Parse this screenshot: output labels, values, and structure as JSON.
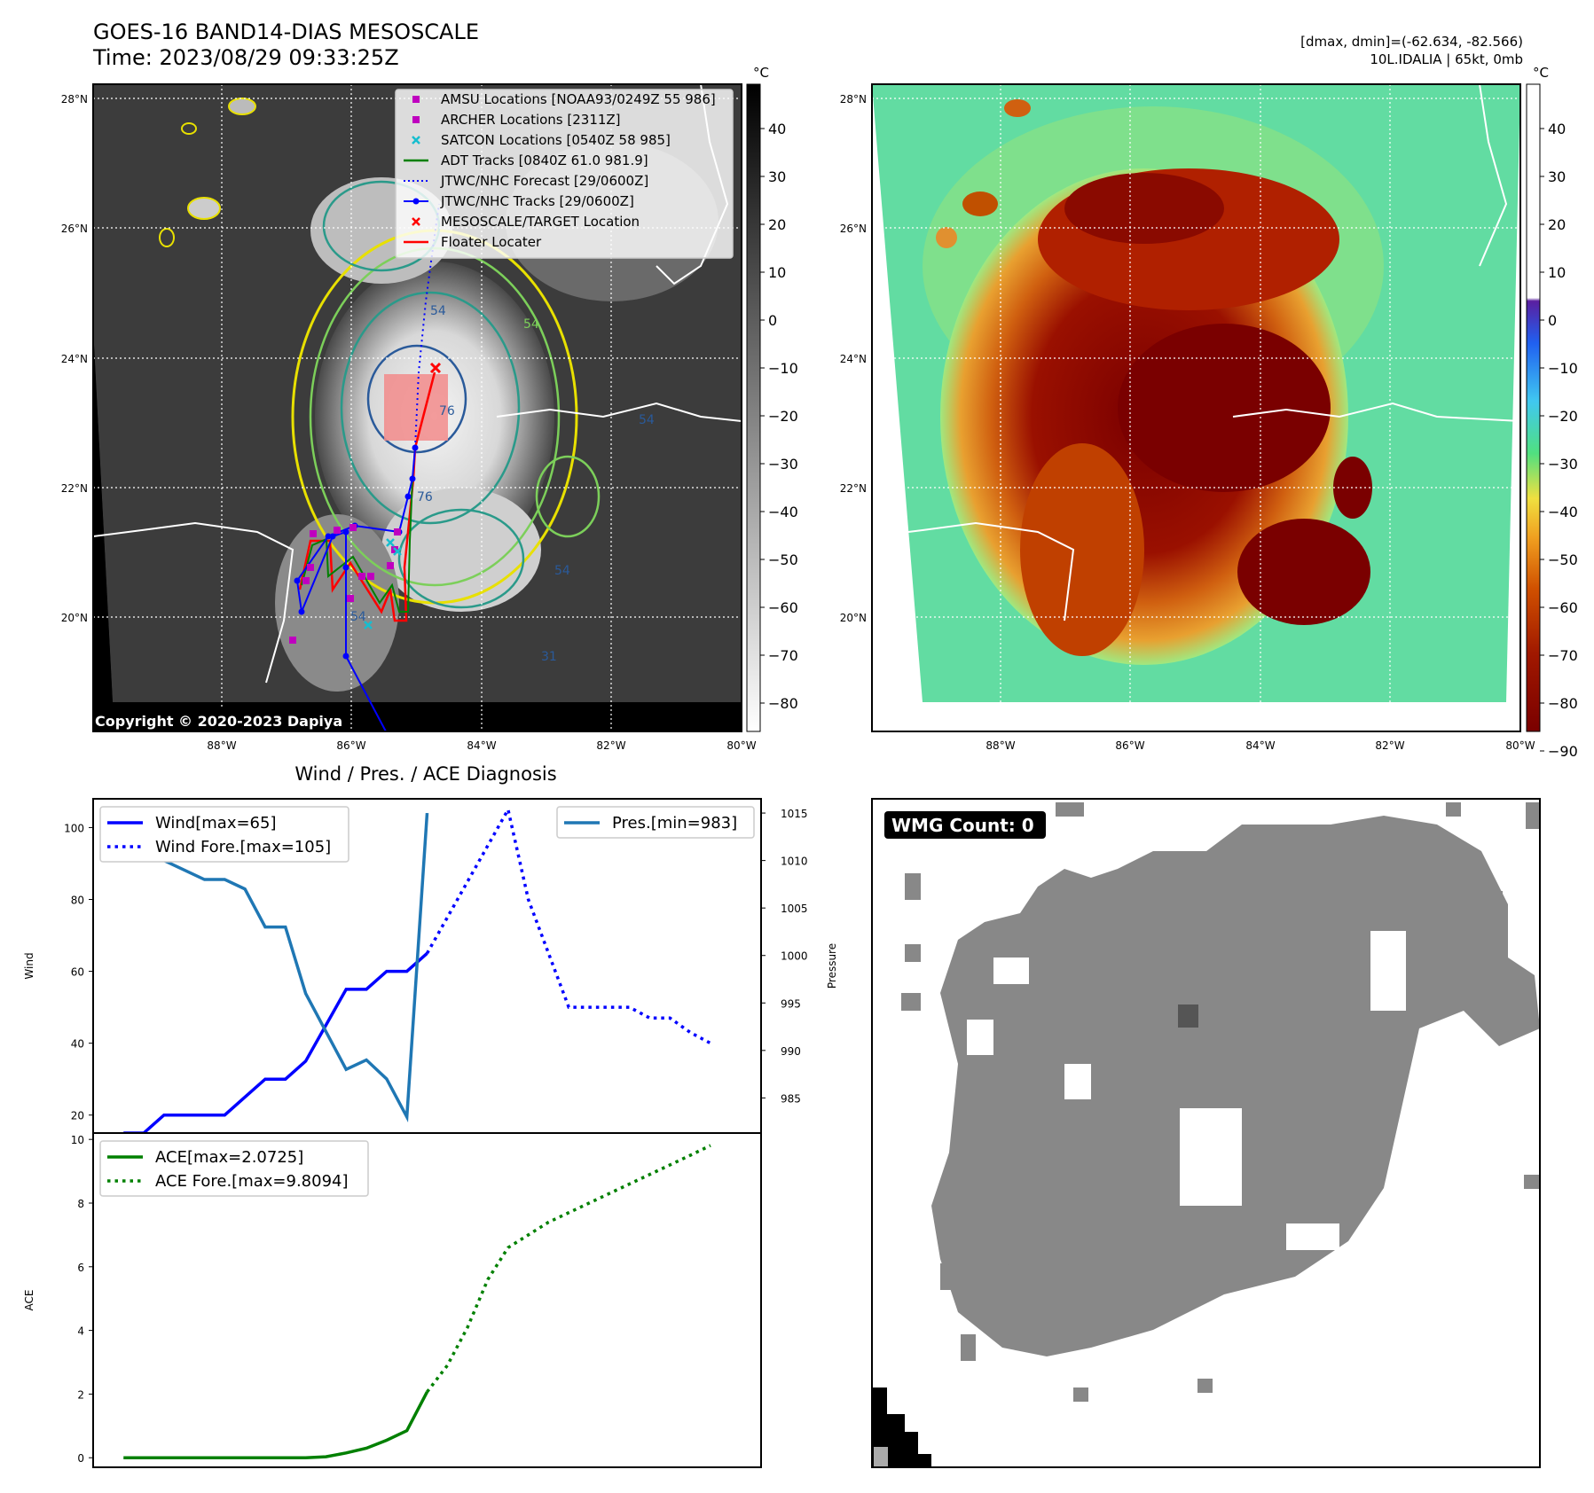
{
  "header": {
    "title_line1": "GOES-16 BAND14-DIAS MESOSCALE",
    "title_line2": "Time: 2023/08/29 09:33:25Z",
    "right_line1": "[dmax, dmin]=(-62.634, -82.566)",
    "right_line2": "10L.IDALIA | 65kt, 0mb"
  },
  "ir_gray_panel": {
    "lat_labels": [
      "28°N",
      "26°N",
      "24°N",
      "22°N",
      "20°N"
    ],
    "lon_labels": [
      "88°W",
      "86°W",
      "84°W",
      "82°W",
      "80°W"
    ],
    "colorbar_unit": "°C",
    "colorbar_ticks": [
      "40",
      "30",
      "20",
      "10",
      "0",
      "−10",
      "−20",
      "−30",
      "−40",
      "−50",
      "−60",
      "−70",
      "−80"
    ],
    "copyright": "Copyright © 2020-2023 Dapiya",
    "contour_labels": [
      "54",
      "54",
      "76",
      "54",
      "76",
      "54",
      "31",
      "54"
    ],
    "legend": [
      {
        "label": "AMSU Locations [NOAA93/0249Z 55 986]",
        "color": "#bf00bf",
        "kind": "square"
      },
      {
        "label": "ARCHER Locations [2311Z]",
        "color": "#bf00bf",
        "kind": "square"
      },
      {
        "label": "SATCON Locations [0540Z 58 985]",
        "color": "#17becf",
        "kind": "x"
      },
      {
        "label": "ADT Tracks [0840Z 61.0 981.9]",
        "color": "#008000",
        "kind": "line"
      },
      {
        "label": "JTWC/NHC Forecast [29/0600Z]",
        "color": "#0000ff",
        "kind": "dotted"
      },
      {
        "label": "JTWC/NHC Tracks [29/0600Z]",
        "color": "#0000ff",
        "kind": "dotline"
      },
      {
        "label": "MESOSCALE/TARGET Location",
        "color": "#ff0000",
        "kind": "x"
      },
      {
        "label": "Floater Locater",
        "color": "#ff0000",
        "kind": "line"
      }
    ]
  },
  "ir_color_panel": {
    "lat_labels": [
      "28°N",
      "26°N",
      "24°N",
      "22°N",
      "20°N"
    ],
    "lon_labels": [
      "88°W",
      "86°W",
      "84°W",
      "82°W",
      "80°W"
    ],
    "colorbar_unit": "°C",
    "colorbar_ticks": [
      "40",
      "30",
      "20",
      "10",
      "0",
      "−10",
      "−20",
      "−30",
      "−40",
      "−50",
      "−60",
      "−70",
      "−80",
      "−90"
    ]
  },
  "wmg_panel": {
    "badge": "WMG Count: 0"
  },
  "colors": {
    "wind": "#0000ff",
    "pressure": "#1f77b4",
    "ace": "#008000",
    "wmg_gray": "#888888"
  },
  "chart_data": [
    {
      "type": "line",
      "title": "Wind / Pres. / ACE Diagnosis",
      "ylabel": "Wind",
      "y2label": "Pressure",
      "ylim": [
        15,
        108
      ],
      "y2lim": [
        981.3,
        1016.5
      ],
      "yticks": [
        20,
        40,
        60,
        80,
        100
      ],
      "y2ticks": [
        985,
        990,
        995,
        1000,
        1005,
        1010,
        1015
      ],
      "series": [
        {
          "name": "Wind[max=65]",
          "axis": "left",
          "style": "solid",
          "color": "#0000ff",
          "x": [
            0,
            1,
            2,
            3,
            4,
            5,
            6,
            7,
            8,
            9,
            10,
            11,
            12,
            13,
            14,
            15
          ],
          "values": [
            15,
            15,
            20,
            20,
            20,
            20,
            25,
            30,
            30,
            35,
            45,
            55,
            55,
            60,
            60,
            65
          ]
        },
        {
          "name": "Wind Fore.[max=105]",
          "axis": "left",
          "style": "dotted",
          "color": "#0000ff",
          "x": [
            15,
            16,
            17,
            18,
            19,
            20,
            21,
            22,
            23,
            24,
            25,
            26,
            27,
            28,
            29
          ],
          "values": [
            65,
            75,
            85,
            95,
            105,
            80,
            65,
            50,
            50,
            50,
            50,
            47,
            47,
            43,
            40
          ]
        },
        {
          "name": "Pres.[min=983]",
          "axis": "right",
          "style": "solid",
          "color": "#1f77b4",
          "x": [
            0,
            1,
            2,
            3,
            4,
            5,
            6,
            7,
            8,
            9,
            10,
            11,
            12,
            13,
            14,
            15
          ],
          "values": [
            1015,
            1015,
            1010,
            1009,
            1008,
            1008,
            1007,
            1003,
            1003,
            996,
            992,
            988,
            989,
            987,
            983,
            1015
          ]
        }
      ],
      "xlim": [
        -1.5,
        31.5
      ]
    },
    {
      "type": "line",
      "ylabel": "ACE",
      "ylim": [
        -0.3,
        10.2
      ],
      "yticks": [
        0,
        2,
        4,
        6,
        8,
        10
      ],
      "series": [
        {
          "name": "ACE[max=2.0725]",
          "style": "solid",
          "color": "#008000",
          "x": [
            0,
            1,
            2,
            3,
            4,
            5,
            6,
            7,
            8,
            9,
            10,
            11,
            12,
            13,
            14,
            15
          ],
          "values": [
            0,
            0,
            0,
            0,
            0,
            0,
            0,
            0,
            0,
            0,
            0.03,
            0.15,
            0.3,
            0.55,
            0.85,
            2.07
          ]
        },
        {
          "name": "ACE Fore.[max=9.8094]",
          "style": "dotted",
          "color": "#008000",
          "x": [
            15,
            16,
            17,
            18,
            19,
            20,
            21,
            22,
            23,
            24,
            25,
            26,
            27,
            28,
            29
          ],
          "values": [
            2.07,
            2.9,
            4.1,
            5.6,
            6.6,
            7.0,
            7.4,
            7.7,
            8.0,
            8.3,
            8.6,
            8.9,
            9.2,
            9.5,
            9.81
          ]
        }
      ],
      "xlim": [
        -1.5,
        31.5
      ]
    }
  ]
}
